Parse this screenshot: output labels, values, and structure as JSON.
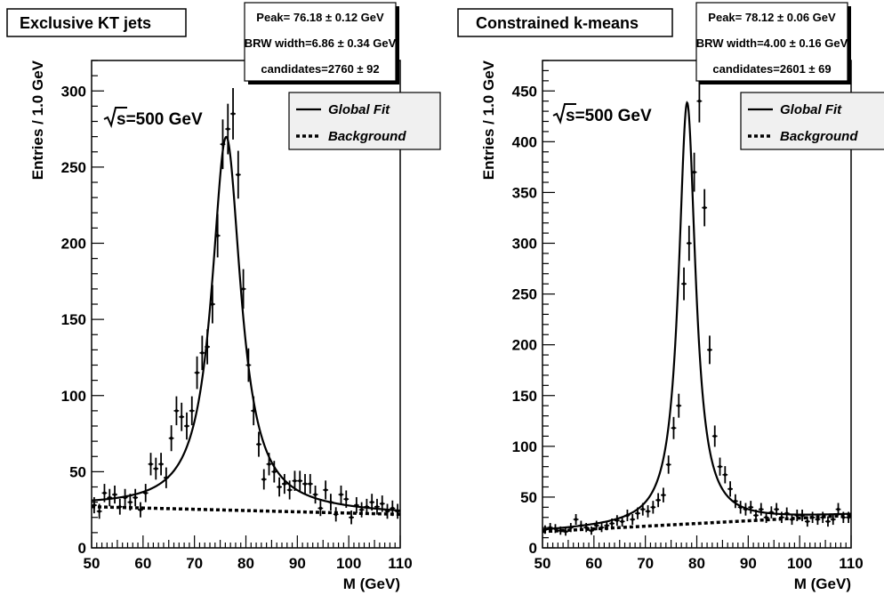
{
  "chart_data": [
    {
      "type": "scatter",
      "title": "Exclusive KT jets",
      "stats": {
        "peak": "Peak=  76.18 ± 0.12 GeV",
        "width": "BRW width=6.86 ± 0.34 GeV",
        "candidates": "candidates=2760 ± 92"
      },
      "energy_label": "s=500 GeV",
      "xlabel": "M (GeV)",
      "ylabel": "Entries / 1.0 GeV",
      "xlim": [
        50,
        110
      ],
      "ylim": [
        0,
        320
      ],
      "xticks": [
        50,
        60,
        70,
        80,
        90,
        100,
        110
      ],
      "yticks": [
        0,
        50,
        100,
        150,
        200,
        250,
        300
      ],
      "legend": {
        "fit": "Global Fit",
        "background": "Background",
        "position": "top-right"
      },
      "fit": {
        "peak": 76.18,
        "width": 6.86,
        "amplitude": 245,
        "background_start": 27,
        "background_end": 22
      },
      "points": {
        "x": [
          50.5,
          51.5,
          52.5,
          53.5,
          54.5,
          55.5,
          56.5,
          57.5,
          58.5,
          59.5,
          60.5,
          61.5,
          62.5,
          63.5,
          64.5,
          65.5,
          66.5,
          67.5,
          68.5,
          69.5,
          70.5,
          71.5,
          72.5,
          73.5,
          74.5,
          75.5,
          76.5,
          77.5,
          78.5,
          79.5,
          80.5,
          81.5,
          82.5,
          83.5,
          84.5,
          85.5,
          86.5,
          87.5,
          88.5,
          89.5,
          90.5,
          91.5,
          92.5,
          93.5,
          94.5,
          95.5,
          96.5,
          97.5,
          98.5,
          99.5,
          100.5,
          101.5,
          102.5,
          103.5,
          104.5,
          105.5,
          106.5,
          107.5,
          108.5,
          109.5
        ],
        "y": [
          28,
          24,
          36,
          33,
          35,
          27,
          33,
          30,
          33,
          25,
          36,
          55,
          52,
          55,
          46,
          72,
          90,
          86,
          80,
          90,
          115,
          128,
          132,
          160,
          205,
          265,
          275,
          285,
          245,
          170,
          120,
          90,
          68,
          45,
          55,
          50,
          40,
          42,
          38,
          44,
          44,
          42,
          42,
          35,
          26,
          38,
          30,
          22,
          35,
          32,
          20,
          28,
          25,
          27,
          30,
          27,
          29,
          24,
          26,
          24
        ],
        "err": [
          5.3,
          4.9,
          6,
          5.7,
          5.9,
          5.2,
          5.7,
          5.5,
          5.7,
          5,
          6,
          7.4,
          7.2,
          7.4,
          6.8,
          8.5,
          9.5,
          9.3,
          8.9,
          9.5,
          10.7,
          11.3,
          11.5,
          12.6,
          14.3,
          16.3,
          16.6,
          16.9,
          15.7,
          13,
          11,
          9.5,
          8.2,
          6.7,
          7.4,
          7.1,
          6.3,
          6.5,
          6.2,
          6.6,
          6.6,
          6.5,
          6.5,
          5.9,
          5.1,
          6.2,
          5.5,
          4.7,
          5.9,
          5.7,
          4.5,
          5.3,
          5,
          5.2,
          5.5,
          5.2,
          5.4,
          4.9,
          5.1,
          4.9
        ]
      }
    },
    {
      "type": "scatter",
      "title": "Constrained k-means",
      "stats": {
        "peak": "Peak=  78.12 ± 0.06 GeV",
        "width": "BRW width=4.00 ± 0.16 GeV",
        "candidates": "candidates=2601 ± 69"
      },
      "energy_label": "s=500 GeV",
      "xlabel": "M (GeV)",
      "ylabel": "Entries / 1.0 GeV",
      "xlim": [
        50,
        110
      ],
      "ylim": [
        0,
        480
      ],
      "xticks": [
        50,
        60,
        70,
        80,
        90,
        100,
        110
      ],
      "yticks": [
        0,
        50,
        100,
        150,
        200,
        250,
        300,
        350,
        400,
        450
      ],
      "legend": {
        "fit": "Global Fit",
        "background": "Background",
        "position": "top-right"
      },
      "fit": {
        "peak": 78.12,
        "width": 4.0,
        "amplitude": 415,
        "background_start": 16,
        "background_end": 32
      },
      "points": {
        "x": [
          50.5,
          51.5,
          52.5,
          53.5,
          54.5,
          55.5,
          56.5,
          57.5,
          58.5,
          59.5,
          60.5,
          61.5,
          62.5,
          63.5,
          64.5,
          65.5,
          66.5,
          67.5,
          68.5,
          69.5,
          70.5,
          71.5,
          72.5,
          73.5,
          74.5,
          75.5,
          76.5,
          77.5,
          78.5,
          79.5,
          80.5,
          81.5,
          82.5,
          83.5,
          84.5,
          85.5,
          86.5,
          87.5,
          88.5,
          89.5,
          90.5,
          91.5,
          92.5,
          93.5,
          94.5,
          95.5,
          96.5,
          97.5,
          98.5,
          99.5,
          100.5,
          101.5,
          102.5,
          103.5,
          104.5,
          105.5,
          106.5,
          107.5,
          108.5,
          109.5
        ],
        "y": [
          18,
          20,
          19,
          17,
          16,
          20,
          28,
          22,
          20,
          17,
          22,
          20,
          22,
          24,
          27,
          26,
          32,
          28,
          34,
          38,
          36,
          40,
          47,
          52,
          82,
          118,
          140,
          260,
          300,
          370,
          440,
          335,
          195,
          110,
          80,
          72,
          58,
          46,
          40,
          38,
          40,
          32,
          38,
          30,
          35,
          38,
          30,
          34,
          28,
          32,
          32,
          26,
          30,
          28,
          30,
          26,
          28,
          38,
          30,
          30
        ],
        "err": [
          4.2,
          4.5,
          4.4,
          4.1,
          4,
          4.5,
          5.3,
          4.7,
          4.5,
          4.1,
          4.7,
          4.5,
          4.7,
          4.9,
          5.2,
          5.1,
          5.7,
          5.3,
          5.8,
          6.2,
          6,
          6.3,
          6.9,
          7.2,
          9,
          10.9,
          11.8,
          16.1,
          17.3,
          19.2,
          21,
          18.3,
          14,
          10.5,
          8.9,
          8.5,
          7.6,
          6.8,
          6.3,
          6.2,
          6.3,
          5.7,
          6.2,
          5.5,
          5.9,
          6.2,
          5.5,
          5.8,
          5.3,
          5.7,
          5.7,
          5.1,
          5.5,
          5.3,
          5.5,
          5.1,
          5.3,
          6.2,
          5.5,
          5.5
        ]
      }
    }
  ]
}
